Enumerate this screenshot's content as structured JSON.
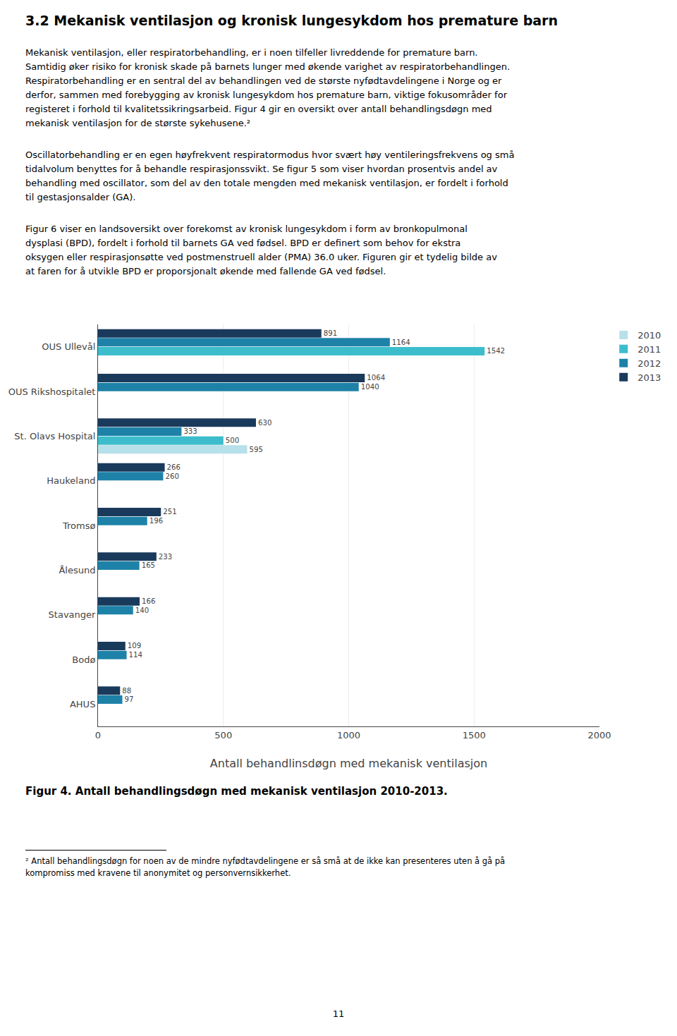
{
  "heading": "3.2 Mekanisk ventilasjon og kronisk lungesykdom hos premature barn",
  "paragraphs": [
    [
      "Mekanisk ventilasjon, eller respiratorbehandling, er i noen tilfeller livreddende for premature barn.",
      "Samtidig øker risiko for kronisk skade på barnets lunger med økende varighet av respiratorbehandlingen.",
      "Respiratorbehandling er en sentral del av behandlingen ved de største nyfødtavdelingene i Norge og er",
      "derfor, sammen med forebygging av kronisk lungesykdom hos premature barn, viktige fokusområder for",
      "registeret i forhold til kvalitetssikringsarbeid. Figur 4 gir en oversikt over antall behandlingsdøgn med",
      "mekanisk ventilasjon for de største sykehusene.²"
    ],
    [
      "Oscillatorbehandling er en egen høyfrekvent respiratormodus hvor svært høy ventileringsfrekvens og små",
      "tidalvolum benyttes for å behandle respirasjonssvikt. Se figur 5 som viser hvordan prosentvis andel av",
      "behandling med oscillator, som del av den totale mengden med mekanisk ventilasjon, er fordelt i forhold",
      "til gestasjonsalder (GA)."
    ],
    [
      "Figur 6 viser en landsoversikt over forekomst av kronisk lungesykdom i form av bronkopulmonal",
      "dysplasi (BPD), fordelt i forhold til barnets GA ved fødsel.  BPD er definert som behov for ekstra",
      "oksygen eller respirasjonsøtte ved postmenstruell alder (PMA) 36.0 uker. Figuren gir et tydelig bilde av",
      "at faren for å utvikle BPD er proporsjonalt økende med fallende GA ved fødsel."
    ]
  ],
  "chart_data": {
    "type": "bar",
    "orientation": "horizontal",
    "title": "Figur 4. Antall behandlingsdøgn med mekanisk ventilasjon 2010-2013.",
    "categories": [
      "OUS Ullevål",
      "OUS Rikshospitalet",
      "St. Olavs Hospital",
      "Haukeland",
      "Tromsø",
      "Ålesund",
      "Stavanger",
      "Bodø",
      "AHUS"
    ],
    "series": [
      {
        "name": "2010",
        "color": "#b8e0ea",
        "values": [
          null,
          null,
          595,
          null,
          null,
          null,
          null,
          null,
          null
        ]
      },
      {
        "name": "2011",
        "color": "#3dbdcc",
        "values": [
          1542,
          null,
          500,
          null,
          null,
          null,
          null,
          null,
          null
        ]
      },
      {
        "name": "2012",
        "color": "#1e82a8",
        "values": [
          1164,
          1040,
          333,
          260,
          196,
          165,
          140,
          114,
          97
        ]
      },
      {
        "name": "2013",
        "color": "#1a3a5c",
        "values": [
          891,
          1064,
          630,
          266,
          251,
          233,
          166,
          109,
          88
        ]
      }
    ],
    "xlabel": "Antall behandlinsdøgn med mekanisk ventilasjon",
    "xlim": [
      0,
      2000
    ],
    "xticks": [
      0,
      500,
      1000,
      1500,
      2000
    ],
    "grid": true,
    "data_labels": true,
    "legend": "right"
  },
  "footnote": [
    "² Antall behandlingsdøgn for noen av de mindre nyfødtavdelingene er så små at de ikke kan presenteres uten å gå på",
    "kompromiss med kravene til anonymitet og personvernsikkerhet."
  ],
  "page_number": "11"
}
